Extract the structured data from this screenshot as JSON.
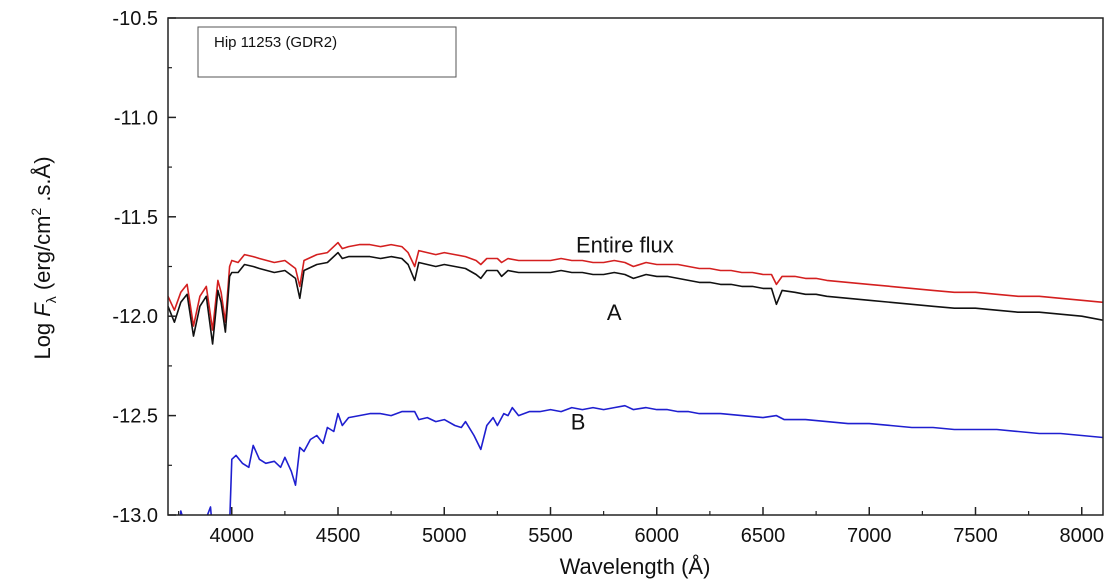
{
  "chart_data": {
    "type": "line",
    "title": "",
    "legend": "Hip 11253 (GDR2)",
    "legend_position": "top-left",
    "xlabel": "Wavelength (Å)",
    "ylabel": {
      "prefix": "Log ",
      "F": "F",
      "sub": "λ",
      "open": " (erg/cm",
      "sup": "2",
      "close": " .s.Å)"
    },
    "xlim": [
      3700,
      8100
    ],
    "ylim": [
      -13.0,
      -10.5
    ],
    "grid": false,
    "xticks": [
      "4000",
      "4500",
      "5000",
      "5500",
      "6000",
      "6500",
      "7000",
      "7500",
      "8000"
    ],
    "yticks": [
      "-10.5",
      "-11.0",
      "-11.5",
      "-12.0",
      "-12.5",
      "-13.0"
    ],
    "annotations": [
      {
        "text": "Entire flux",
        "x": 5850,
        "y": -11.68
      },
      {
        "text": "A",
        "x": 5800,
        "y": -12.02
      },
      {
        "text": "B",
        "x": 5630,
        "y": -12.57
      }
    ],
    "series": [
      {
        "color": "#d42020",
        "x": [
          3700,
          3730,
          3760,
          3790,
          3820,
          3850,
          3880,
          3910,
          3935,
          3950,
          3970,
          3990,
          4000,
          4030,
          4060,
          4101,
          4130,
          4200,
          4250,
          4300,
          4320,
          4340,
          4400,
          4450,
          4500,
          4520,
          4550,
          4600,
          4650,
          4700,
          4750,
          4800,
          4830,
          4861,
          4880,
          4920,
          4960,
          5000,
          5050,
          5100,
          5150,
          5172,
          5200,
          5250,
          5270,
          5300,
          5350,
          5400,
          5450,
          5500,
          5550,
          5600,
          5650,
          5700,
          5750,
          5800,
          5850,
          5890,
          5950,
          6000,
          6050,
          6100,
          6150,
          6200,
          6250,
          6300,
          6350,
          6400,
          6450,
          6500,
          6540,
          6563,
          6590,
          6650,
          6700,
          6750,
          6800,
          6900,
          7000,
          7100,
          7200,
          7300,
          7400,
          7500,
          7600,
          7700,
          7800,
          7900,
          8000,
          8100
        ],
        "y": [
          -11.9,
          -11.97,
          -11.88,
          -11.84,
          -12.05,
          -11.9,
          -11.85,
          -12.07,
          -11.82,
          -11.88,
          -12.03,
          -11.75,
          -11.72,
          -11.73,
          -11.69,
          -11.7,
          -11.71,
          -11.73,
          -11.72,
          -11.76,
          -11.85,
          -11.72,
          -11.69,
          -11.68,
          -11.63,
          -11.66,
          -11.65,
          -11.64,
          -11.64,
          -11.65,
          -11.64,
          -11.65,
          -11.68,
          -11.75,
          -11.67,
          -11.68,
          -11.69,
          -11.68,
          -11.69,
          -11.7,
          -11.72,
          -11.74,
          -11.71,
          -11.71,
          -11.73,
          -11.71,
          -11.72,
          -11.72,
          -11.72,
          -11.72,
          -11.71,
          -11.72,
          -11.72,
          -11.73,
          -11.73,
          -11.72,
          -11.73,
          -11.75,
          -11.73,
          -11.74,
          -11.74,
          -11.74,
          -11.75,
          -11.76,
          -11.76,
          -11.77,
          -11.77,
          -11.78,
          -11.78,
          -11.79,
          -11.79,
          -11.84,
          -11.8,
          -11.8,
          -11.81,
          -11.81,
          -11.82,
          -11.83,
          -11.84,
          -11.85,
          -11.86,
          -11.87,
          -11.88,
          -11.88,
          -11.89,
          -11.9,
          -11.9,
          -11.91,
          -11.92,
          -11.93
        ]
      },
      {
        "color": "#111111",
        "x": [
          3700,
          3730,
          3760,
          3790,
          3820,
          3850,
          3880,
          3910,
          3935,
          3950,
          3970,
          3990,
          4000,
          4030,
          4060,
          4101,
          4130,
          4200,
          4250,
          4300,
          4320,
          4340,
          4400,
          4450,
          4500,
          4520,
          4550,
          4600,
          4650,
          4700,
          4750,
          4800,
          4830,
          4861,
          4880,
          4920,
          4960,
          5000,
          5050,
          5100,
          5150,
          5172,
          5200,
          5250,
          5270,
          5300,
          5350,
          5400,
          5450,
          5500,
          5550,
          5600,
          5650,
          5700,
          5750,
          5800,
          5850,
          5890,
          5950,
          6000,
          6050,
          6100,
          6150,
          6200,
          6250,
          6300,
          6350,
          6400,
          6450,
          6500,
          6540,
          6563,
          6590,
          6650,
          6700,
          6750,
          6800,
          6900,
          7000,
          7100,
          7200,
          7300,
          7400,
          7500,
          7600,
          7700,
          7800,
          7900,
          8000,
          8100
        ],
        "y": [
          -11.95,
          -12.03,
          -11.93,
          -11.89,
          -12.1,
          -11.95,
          -11.9,
          -12.14,
          -11.87,
          -11.93,
          -12.08,
          -11.8,
          -11.78,
          -11.78,
          -11.74,
          -11.75,
          -11.76,
          -11.78,
          -11.77,
          -11.81,
          -11.91,
          -11.77,
          -11.74,
          -11.73,
          -11.68,
          -11.71,
          -11.7,
          -11.7,
          -11.7,
          -11.71,
          -11.7,
          -11.71,
          -11.74,
          -11.82,
          -11.73,
          -11.74,
          -11.75,
          -11.74,
          -11.75,
          -11.76,
          -11.79,
          -11.81,
          -11.77,
          -11.77,
          -11.8,
          -11.77,
          -11.78,
          -11.78,
          -11.78,
          -11.78,
          -11.77,
          -11.78,
          -11.78,
          -11.79,
          -11.79,
          -11.78,
          -11.79,
          -11.81,
          -11.79,
          -11.8,
          -11.8,
          -11.81,
          -11.82,
          -11.83,
          -11.83,
          -11.84,
          -11.84,
          -11.85,
          -11.85,
          -11.86,
          -11.86,
          -11.94,
          -11.87,
          -11.88,
          -11.89,
          -11.89,
          -11.9,
          -11.91,
          -11.92,
          -11.93,
          -11.94,
          -11.95,
          -11.96,
          -11.96,
          -11.97,
          -11.98,
          -11.98,
          -11.99,
          -12.0,
          -12.02
        ]
      },
      {
        "color": "#1f1fd0",
        "x": [
          3700,
          3750,
          3760,
          3780,
          3800,
          3850,
          3900,
          3910,
          3930,
          3960,
          3990,
          4000,
          4020,
          4050,
          4080,
          4101,
          4130,
          4160,
          4200,
          4230,
          4250,
          4280,
          4300,
          4320,
          4340,
          4370,
          4400,
          4430,
          4450,
          4480,
          4500,
          4520,
          4550,
          4600,
          4650,
          4700,
          4750,
          4800,
          4861,
          4880,
          4920,
          4960,
          5000,
          5050,
          5080,
          5100,
          5140,
          5172,
          5200,
          5230,
          5250,
          5280,
          5300,
          5320,
          5350,
          5400,
          5450,
          5500,
          5550,
          5600,
          5650,
          5700,
          5750,
          5800,
          5850,
          5890,
          5950,
          6000,
          6050,
          6100,
          6150,
          6200,
          6300,
          6400,
          6500,
          6563,
          6600,
          6700,
          6800,
          6900,
          7000,
          7100,
          7200,
          7300,
          7400,
          7500,
          7600,
          7700,
          7800,
          7900,
          8000,
          8100
        ],
        "y": [
          -13.2,
          -13.1,
          -12.98,
          -13.05,
          -13.15,
          -13.1,
          -12.96,
          -13.08,
          -13.25,
          -13.15,
          -13.05,
          -12.72,
          -12.7,
          -12.74,
          -12.76,
          -12.65,
          -12.72,
          -12.74,
          -12.73,
          -12.76,
          -12.71,
          -12.78,
          -12.85,
          -12.66,
          -12.68,
          -12.62,
          -12.6,
          -12.64,
          -12.56,
          -12.58,
          -12.49,
          -12.55,
          -12.51,
          -12.5,
          -12.49,
          -12.49,
          -12.5,
          -12.48,
          -12.48,
          -12.52,
          -12.51,
          -12.53,
          -12.52,
          -12.55,
          -12.56,
          -12.53,
          -12.6,
          -12.67,
          -12.55,
          -12.51,
          -12.55,
          -12.49,
          -12.5,
          -12.46,
          -12.5,
          -12.48,
          -12.48,
          -12.47,
          -12.48,
          -12.46,
          -12.47,
          -12.46,
          -12.47,
          -12.46,
          -12.45,
          -12.47,
          -12.46,
          -12.47,
          -12.47,
          -12.48,
          -12.48,
          -12.49,
          -12.49,
          -12.5,
          -12.51,
          -12.5,
          -12.52,
          -12.52,
          -12.53,
          -12.54,
          -12.54,
          -12.55,
          -12.56,
          -12.56,
          -12.57,
          -12.57,
          -12.57,
          -12.58,
          -12.59,
          -12.59,
          -12.6,
          -12.61
        ]
      }
    ]
  }
}
